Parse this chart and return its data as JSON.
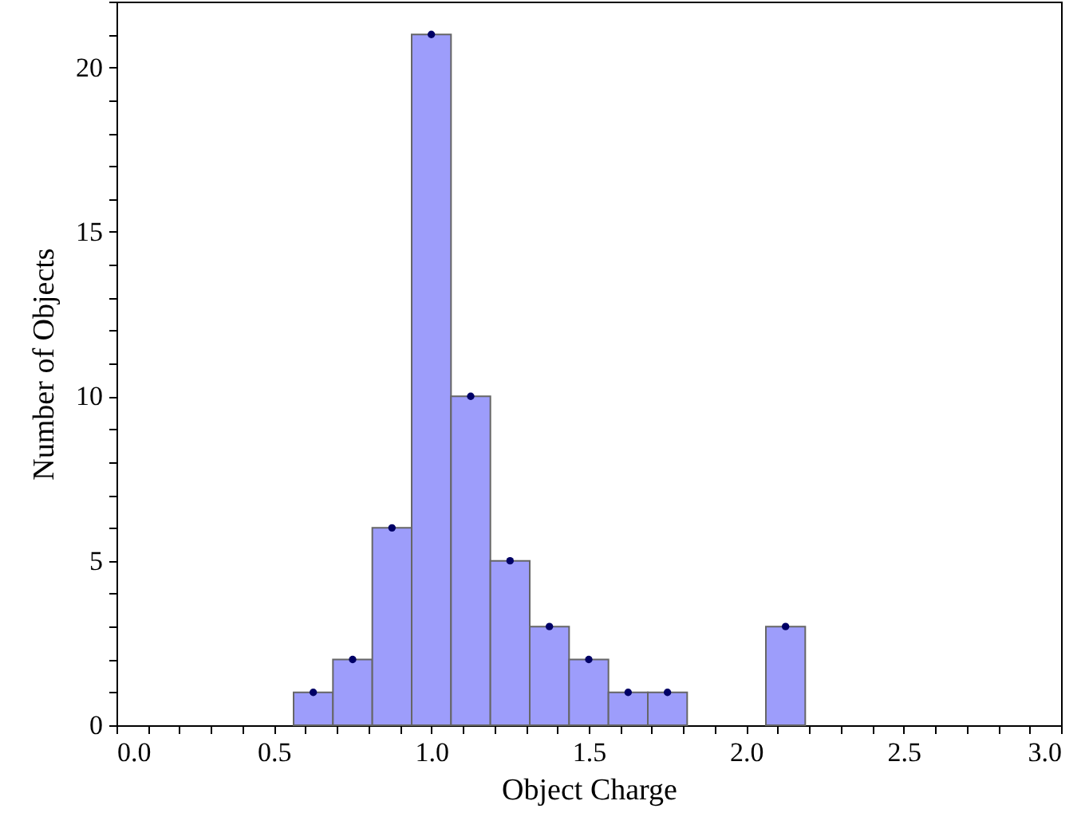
{
  "chart_data": {
    "type": "histogram",
    "xlabel": "Object Charge",
    "ylabel": "Number of Objects",
    "bins": [
      0.5625,
      0.6875,
      0.8125,
      0.9375,
      1.0625,
      1.1875,
      1.3125,
      1.4375,
      1.5625,
      1.6875,
      1.8125,
      1.9375,
      2.0625,
      2.1875
    ],
    "series": [
      {
        "type": "histogram",
        "color": "#9d9dfb",
        "values": [
          1,
          2,
          6,
          21,
          10,
          5,
          3,
          2,
          1,
          1,
          0,
          0,
          3
        ]
      },
      {
        "type": "scatter",
        "color": "#000066",
        "x": [
          0.625,
          0.75,
          0.875,
          1.0,
          1.125,
          1.25,
          1.375,
          1.5,
          1.625,
          1.75,
          2.125
        ],
        "values": [
          1,
          2,
          6,
          21,
          10,
          5,
          3,
          2,
          1,
          1,
          3
        ]
      }
    ],
    "xlim": [
      0,
      3
    ],
    "ylim": [
      0,
      22
    ],
    "xticks": [
      {
        "value": 0,
        "label": "0.0"
      },
      {
        "value": 0.1,
        "label": null
      },
      {
        "value": 0.2,
        "label": null
      },
      {
        "value": 0.3,
        "label": null
      },
      {
        "value": 0.4,
        "label": null
      },
      {
        "value": 0.5,
        "label": "0.5"
      },
      {
        "value": 0.6,
        "label": null
      },
      {
        "value": 0.7,
        "label": null
      },
      {
        "value": 0.8,
        "label": null
      },
      {
        "value": 0.9,
        "label": null
      },
      {
        "value": 1,
        "label": "1.0"
      },
      {
        "value": 1.1,
        "label": null
      },
      {
        "value": 1.2,
        "label": null
      },
      {
        "value": 1.3,
        "label": null
      },
      {
        "value": 1.4,
        "label": null
      },
      {
        "value": 1.5,
        "label": "1.5"
      },
      {
        "value": 1.6,
        "label": null
      },
      {
        "value": 1.7,
        "label": null
      },
      {
        "value": 1.8,
        "label": null
      },
      {
        "value": 1.9,
        "label": null
      },
      {
        "value": 2,
        "label": "2.0"
      },
      {
        "value": 2.1,
        "label": null
      },
      {
        "value": 2.2,
        "label": null
      },
      {
        "value": 2.3,
        "label": null
      },
      {
        "value": 2.4,
        "label": null
      },
      {
        "value": 2.5,
        "label": "2.5"
      },
      {
        "value": 2.6,
        "label": null
      },
      {
        "value": 2.7,
        "label": null
      },
      {
        "value": 2.8,
        "label": null
      },
      {
        "value": 2.9,
        "label": null
      },
      {
        "value": 3,
        "label": "3.0"
      }
    ],
    "yticks": [
      0,
      {
        "value": 1,
        "label": null
      },
      {
        "value": 2,
        "label": null
      },
      {
        "value": 3,
        "label": null
      },
      {
        "value": 4,
        "label": null
      },
      5,
      {
        "value": 6,
        "label": null
      },
      {
        "value": 7,
        "label": null
      },
      {
        "value": 8,
        "label": null
      },
      {
        "value": 9,
        "label": null
      },
      10,
      {
        "value": 11,
        "label": null
      },
      {
        "value": 12,
        "label": null
      },
      {
        "value": 13,
        "label": null
      },
      {
        "value": 14,
        "label": null
      },
      15,
      {
        "value": 16,
        "label": null
      },
      {
        "value": 17,
        "label": null
      },
      {
        "value": 18,
        "label": null
      },
      {
        "value": 19,
        "label": null
      },
      20,
      {
        "value": 21,
        "label": null
      },
      {
        "value": 22,
        "label": null
      }
    ],
    "grid": false,
    "marker": "circle"
  }
}
